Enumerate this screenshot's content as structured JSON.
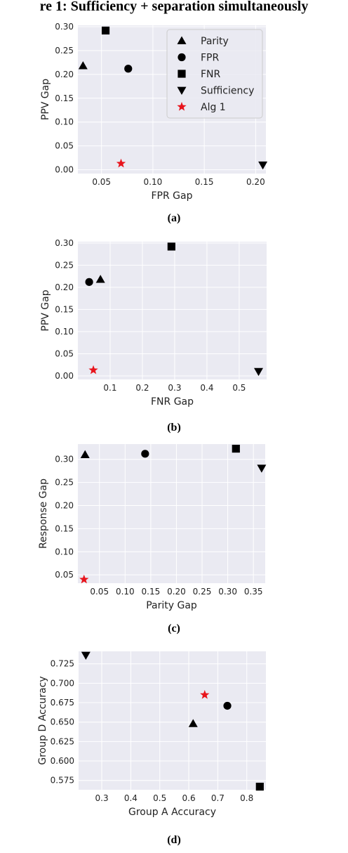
{
  "figure_title": "re 1: Sufficiency + separation simultaneously",
  "legend": {
    "items": [
      {
        "label": "Parity",
        "marker": "triangle-up"
      },
      {
        "label": "FPR",
        "marker": "circle"
      },
      {
        "label": "FNR",
        "marker": "square"
      },
      {
        "label": "Sufficiency",
        "marker": "triangle-down"
      },
      {
        "label": "Alg 1",
        "marker": "star",
        "color": "#e8141c"
      }
    ]
  },
  "colors": {
    "marker": "#000000",
    "highlight": "#e8141c",
    "plot_bg": "#eaeaf2",
    "grid": "#ffffff"
  },
  "chart_data": [
    {
      "type": "scatter",
      "caption": "(a)",
      "xlabel": "FPR Gap",
      "ylabel": "PPV Gap",
      "xlim": [
        0.027,
        0.21
      ],
      "ylim": [
        -0.008,
        0.303
      ],
      "xticks": [
        0.05,
        0.1,
        0.15,
        0.2
      ],
      "xtick_labels": [
        "0.05",
        "0.10",
        "0.15",
        "0.20"
      ],
      "yticks": [
        0.0,
        0.05,
        0.1,
        0.15,
        0.2,
        0.25,
        0.3
      ],
      "ytick_labels": [
        "0.00",
        "0.05",
        "0.10",
        "0.15",
        "0.20",
        "0.25",
        "0.30"
      ],
      "points": [
        {
          "name": "Parity",
          "marker": "triangle-up",
          "x": 0.032,
          "y": 0.218
        },
        {
          "name": "FPR",
          "marker": "circle",
          "x": 0.076,
          "y": 0.212
        },
        {
          "name": "FNR",
          "marker": "square",
          "x": 0.054,
          "y": 0.292
        },
        {
          "name": "Sufficiency",
          "marker": "triangle-down",
          "x": 0.207,
          "y": 0.01
        },
        {
          "name": "Alg 1",
          "marker": "star",
          "x": 0.069,
          "y": 0.013
        }
      ],
      "legend": "top-right"
    },
    {
      "type": "scatter",
      "caption": "(b)",
      "xlabel": "FNR Gap",
      "ylabel": "PPV Gap",
      "xlim": [
        0.0,
        0.585
      ],
      "ylim": [
        -0.008,
        0.303
      ],
      "xticks": [
        0.1,
        0.2,
        0.3,
        0.4,
        0.5
      ],
      "xtick_labels": [
        "0.1",
        "0.2",
        "0.3",
        "0.4",
        "0.5"
      ],
      "yticks": [
        0.0,
        0.05,
        0.1,
        0.15,
        0.2,
        0.25,
        0.3
      ],
      "ytick_labels": [
        "0.00",
        "0.05",
        "0.10",
        "0.15",
        "0.20",
        "0.25",
        "0.30"
      ],
      "points": [
        {
          "name": "Parity",
          "marker": "triangle-up",
          "x": 0.07,
          "y": 0.218
        },
        {
          "name": "FPR",
          "marker": "circle",
          "x": 0.035,
          "y": 0.212
        },
        {
          "name": "FNR",
          "marker": "square",
          "x": 0.29,
          "y": 0.292
        },
        {
          "name": "Sufficiency",
          "marker": "triangle-down",
          "x": 0.56,
          "y": 0.01
        },
        {
          "name": "Alg 1",
          "marker": "star",
          "x": 0.048,
          "y": 0.013
        }
      ]
    },
    {
      "type": "scatter",
      "caption": "(c)",
      "xlabel": "Parity Gap",
      "ylabel": "Response Gap",
      "xlim": [
        0.008,
        0.373
      ],
      "ylim": [
        0.032,
        0.333
      ],
      "xticks": [
        0.05,
        0.1,
        0.15,
        0.2,
        0.25,
        0.3,
        0.35
      ],
      "xtick_labels": [
        "0.05",
        "0.10",
        "0.15",
        "0.20",
        "0.25",
        "0.30",
        "0.35"
      ],
      "yticks": [
        0.05,
        0.1,
        0.15,
        0.2,
        0.25,
        0.3
      ],
      "ytick_labels": [
        "0.05",
        "0.10",
        "0.15",
        "0.20",
        "0.25",
        "0.30"
      ],
      "points": [
        {
          "name": "Parity",
          "marker": "triangle-up",
          "x": 0.022,
          "y": 0.31
        },
        {
          "name": "FPR",
          "marker": "circle",
          "x": 0.139,
          "y": 0.312
        },
        {
          "name": "FNR",
          "marker": "square",
          "x": 0.316,
          "y": 0.323
        },
        {
          "name": "Sufficiency",
          "marker": "triangle-down",
          "x": 0.366,
          "y": 0.281
        },
        {
          "name": "Alg 1",
          "marker": "star",
          "x": 0.02,
          "y": 0.04
        }
      ]
    },
    {
      "type": "scatter",
      "caption": "(d)",
      "xlabel": "Group A Accuracy",
      "ylabel": "Group D Accuracy",
      "xlim": [
        0.22,
        0.866
      ],
      "ylim": [
        0.563,
        0.741
      ],
      "xticks": [
        0.3,
        0.4,
        0.5,
        0.6,
        0.7,
        0.8
      ],
      "xtick_labels": [
        "0.3",
        "0.4",
        "0.5",
        "0.6",
        "0.7",
        "0.8"
      ],
      "yticks": [
        0.575,
        0.6,
        0.625,
        0.65,
        0.675,
        0.7,
        0.725
      ],
      "ytick_labels": [
        "0.575",
        "0.600",
        "0.625",
        "0.650",
        "0.675",
        "0.700",
        "0.725"
      ],
      "points": [
        {
          "name": "Parity",
          "marker": "triangle-up",
          "x": 0.615,
          "y": 0.648
        },
        {
          "name": "FPR",
          "marker": "circle",
          "x": 0.733,
          "y": 0.671
        },
        {
          "name": "FNR",
          "marker": "square",
          "x": 0.845,
          "y": 0.567
        },
        {
          "name": "Sufficiency",
          "marker": "triangle-down",
          "x": 0.245,
          "y": 0.736
        },
        {
          "name": "Alg 1",
          "marker": "star",
          "x": 0.655,
          "y": 0.685
        }
      ]
    }
  ]
}
